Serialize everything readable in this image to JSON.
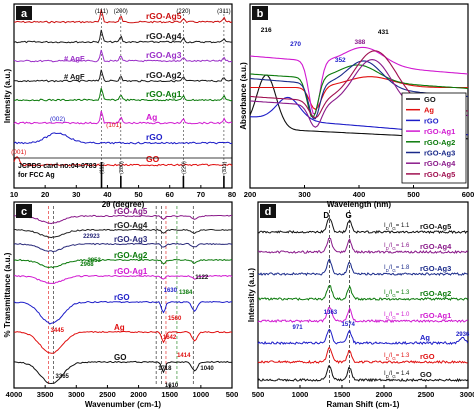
{
  "chart_data": [
    {
      "panel": "a",
      "type": "line",
      "xlabel": "2θ (degree)",
      "ylabel": "Intensity (a.u.)",
      "xlim": [
        10,
        80
      ],
      "xticks": [
        10,
        20,
        30,
        40,
        50,
        60,
        70,
        80
      ],
      "series": [
        {
          "name": "rGO-Ag5",
          "color": "#cc1010"
        },
        {
          "name": "rGO-Ag4",
          "color": "#1a1a1a"
        },
        {
          "name": "rGO-Ag3",
          "color": "#9b30c8"
        },
        {
          "name": "rGO-Ag2",
          "color": "#1a1a1a"
        },
        {
          "name": "rGO-Ag1",
          "color": "#0b7a0b"
        },
        {
          "name": "Ag",
          "color": "#d11ad1"
        },
        {
          "name": "rGO",
          "color": "#1d1dc8"
        },
        {
          "name": "GO",
          "color": "#e01010"
        }
      ],
      "peaks": [
        "(111)",
        "(200)",
        "(220)",
        "(311)"
      ],
      "annotations": [
        "# AgF",
        "# AgF",
        "(002)",
        "(001)",
        "(101)"
      ],
      "reference": [
        "JCPDS card no:04-0783",
        "for FCC Ag"
      ],
      "ref_peaks": [
        "(111)",
        "(200)",
        "(220)",
        "(311)"
      ]
    },
    {
      "panel": "b",
      "type": "line",
      "xlabel": "Wavelength (nm)",
      "ylabel": "Absorbance (a.u.)",
      "xlim": [
        200,
        600
      ],
      "xticks": [
        200,
        300,
        400,
        500,
        600
      ],
      "legend_position": "bottom-right",
      "series": [
        {
          "name": "GO",
          "color": "#111111"
        },
        {
          "name": "Ag",
          "color": "#e01010"
        },
        {
          "name": "rGO",
          "color": "#1d1dc8"
        },
        {
          "name": "rGO-Ag1",
          "color": "#d11ad1"
        },
        {
          "name": "rGO-Ag2",
          "color": "#0b7a0b"
        },
        {
          "name": "rGO-Ag3",
          "color": "#1a2a8a"
        },
        {
          "name": "rGO-Ag4",
          "color": "#8a1a8a"
        },
        {
          "name": "rGO-Ag5",
          "color": "#a01050"
        }
      ],
      "peak_labels": [
        "216",
        "270",
        "352",
        "388",
        "431"
      ]
    },
    {
      "panel": "c",
      "type": "line",
      "xlabel": "Wavenumber (cm-1)",
      "ylabel": "% Transmittance (a.u.)",
      "xlim": [
        4000,
        500
      ],
      "xticks": [
        4000,
        3500,
        3000,
        2500,
        2000,
        1500,
        1000,
        500
      ],
      "series": [
        {
          "name": "rGO-Ag5",
          "color": "#8a1a8a"
        },
        {
          "name": "rGO-Ag4",
          "color": "#222222"
        },
        {
          "name": "rGO-Ag3",
          "color": "#2a2a7a"
        },
        {
          "name": "rGO-Ag2",
          "color": "#0b7a0b"
        },
        {
          "name": "rGO-Ag1",
          "color": "#d11ad1"
        },
        {
          "name": "rGO",
          "color": "#1d1dc8"
        },
        {
          "name": "Ag",
          "color": "#e01010"
        },
        {
          "name": "GO",
          "color": "#111111"
        }
      ],
      "annotations": [
        "22923",
        "2853",
        "2968",
        "1630",
        "1384",
        "1122",
        "3445",
        "1560",
        "1642",
        "1414",
        "3365",
        "1718",
        "1610",
        "1040"
      ]
    },
    {
      "panel": "d",
      "type": "line",
      "xlabel": "Raman Shift (cm-1)",
      "ylabel": "Intensity (a.u.)",
      "xlim": [
        500,
        3000
      ],
      "xticks": [
        500,
        1000,
        1500,
        2000,
        2500,
        3000
      ],
      "bands": [
        "D",
        "G"
      ],
      "series": [
        {
          "name": "rGO-Ag5",
          "color": "#111111",
          "ratio": "1.1"
        },
        {
          "name": "rGO-Ag4",
          "color": "#8a1a8a",
          "ratio": "1.6"
        },
        {
          "name": "rGO-Ag3",
          "color": "#1a2a8a",
          "ratio": "1.8"
        },
        {
          "name": "rGO-Ag2",
          "color": "#0b7a0b",
          "ratio": "1.3"
        },
        {
          "name": "rGO-Ag1",
          "color": "#d11ad1",
          "ratio": "1.0"
        },
        {
          "name": "Ag",
          "color": "#1d1dc8",
          "ratio": ""
        },
        {
          "name": "rGO",
          "color": "#e01010",
          "ratio": "1.3"
        },
        {
          "name": "GO",
          "color": "#111111",
          "ratio": "1.4"
        }
      ],
      "ratio_label": "ID/IG",
      "annotations": [
        "971",
        "1363",
        "1574",
        "2936"
      ]
    }
  ]
}
